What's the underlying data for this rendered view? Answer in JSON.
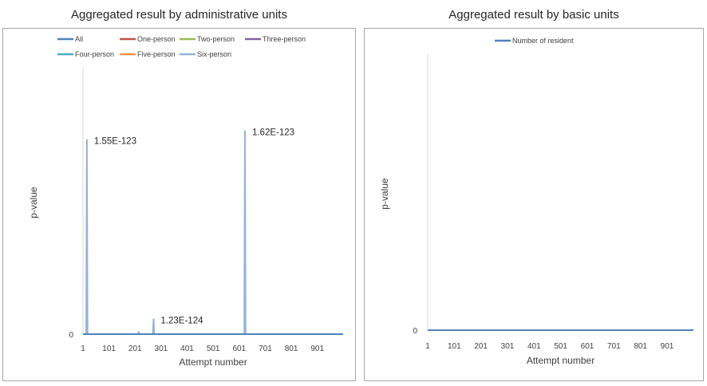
{
  "chart_data": [
    {
      "type": "line",
      "title": "Aggregated result by administrative units",
      "xlabel": "Attempt number",
      "ylabel": "p-value",
      "x_ticks": [
        "1",
        "101",
        "201",
        "301",
        "401",
        "501",
        "601",
        "701",
        "801",
        "901"
      ],
      "xlim": [
        1,
        1000
      ],
      "y_ticks": [
        "0"
      ],
      "ylim": [
        0,
        2.1e-123
      ],
      "grid": false,
      "legend_position": "top",
      "series": [
        {
          "name": "All",
          "color": "#4f81bd",
          "points": [
            [
              1,
              0
            ],
            [
              1000,
              0
            ]
          ]
        },
        {
          "name": "One-person",
          "color": "#c0504d",
          "points": [
            [
              1,
              0
            ],
            [
              1000,
              0
            ]
          ]
        },
        {
          "name": "Two-person",
          "color": "#9bbb59",
          "points": [
            [
              1,
              0
            ],
            [
              1000,
              0
            ]
          ]
        },
        {
          "name": "Three-person",
          "color": "#8064a2",
          "points": [
            [
              1,
              0
            ],
            [
              1000,
              0
            ]
          ]
        },
        {
          "name": "Four-person",
          "color": "#4bacc6",
          "points": [
            [
              1,
              0
            ],
            [
              1000,
              0
            ]
          ]
        },
        {
          "name": "Five-person",
          "color": "#f79646",
          "points": [
            [
              1,
              0
            ],
            [
              1000,
              0
            ]
          ]
        },
        {
          "name": "Six-person",
          "color": "#95b3d7",
          "points": [
            [
              1,
              0
            ],
            [
              16,
              1.55e-123
            ],
            [
              215,
              2e-125
            ],
            [
              272,
              1.23e-124
            ],
            [
              623,
              1.62e-123
            ],
            [
              1000,
              0
            ]
          ]
        }
      ],
      "annotations": [
        {
          "text": "1.55E-123",
          "x": 16,
          "y": 1.55e-123
        },
        {
          "text": "1.23E-124",
          "x": 272,
          "y": 1.23e-124
        },
        {
          "text": "1.62E-123",
          "x": 623,
          "y": 1.62e-123
        }
      ]
    },
    {
      "type": "line",
      "title": "Aggregated result by basic units",
      "xlabel": "Attempt number",
      "ylabel": "p-value",
      "x_ticks": [
        "1",
        "101",
        "201",
        "301",
        "401",
        "501",
        "601",
        "701",
        "801",
        "901"
      ],
      "xlim": [
        1,
        1000
      ],
      "y_ticks": [
        "0"
      ],
      "grid": false,
      "legend_position": "top",
      "series": [
        {
          "name": "Number of resident",
          "color": "#4f81bd",
          "points": [
            [
              1,
              0
            ],
            [
              1000,
              0
            ]
          ]
        }
      ]
    }
  ]
}
